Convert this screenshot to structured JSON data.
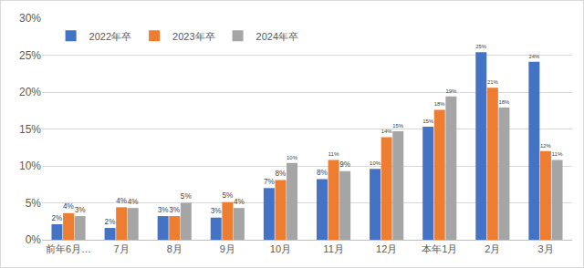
{
  "chart_data": {
    "type": "bar",
    "categories": [
      "前年6月…",
      "7月",
      "8月",
      "9月",
      "10月",
      "11月",
      "12月",
      "本年1月",
      "2月",
      "3月"
    ],
    "series": [
      {
        "name": "2022年卒",
        "color": "#4472C4",
        "values": [
          2.1,
          1.6,
          3.2,
          3.0,
          7.0,
          8.2,
          9.6,
          15.3,
          25.4,
          24.1
        ],
        "value_labels": [
          "2%",
          "2%",
          "3%",
          "3%",
          "7%",
          "8%",
          "10%",
          "15%",
          "25%",
          "24%"
        ]
      },
      {
        "name": "2023年卒",
        "color": "#ED7D31",
        "values": [
          3.6,
          4.4,
          3.2,
          5.1,
          8.1,
          10.8,
          13.9,
          17.6,
          20.6,
          12.0
        ],
        "value_labels": [
          "4%",
          "4%",
          "3%",
          "5%",
          "8%",
          "11%",
          "14%",
          "18%",
          "21%",
          "12%"
        ]
      },
      {
        "name": "2024年卒",
        "color": "#A5A5A5",
        "values": [
          3.2,
          4.3,
          5.0,
          4.3,
          10.4,
          9.3,
          14.7,
          19.4,
          17.9,
          10.8
        ],
        "value_labels": [
          "3%",
          "4%",
          "5%",
          "4%",
          "10%",
          "9%",
          "15%",
          "19%",
          "18%",
          "11%"
        ]
      }
    ],
    "ylim": [
      0,
      30
    ],
    "yticks": [
      {
        "value": 0,
        "label": "0%"
      },
      {
        "value": 5,
        "label": "5%"
      },
      {
        "value": 10,
        "label": "10%"
      },
      {
        "value": 15,
        "label": "15%"
      },
      {
        "value": 20,
        "label": "20%"
      },
      {
        "value": 25,
        "label": "25%"
      },
      {
        "value": 30,
        "label": "30%"
      }
    ],
    "grid": true,
    "legend": "top-left",
    "data_labels": true
  }
}
